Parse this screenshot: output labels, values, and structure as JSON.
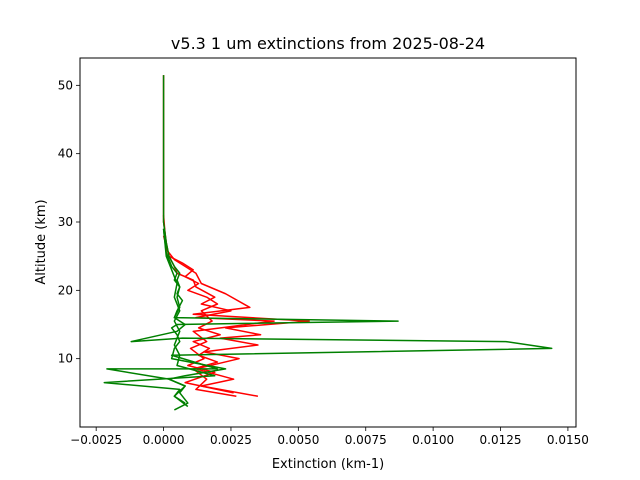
{
  "chart_data": {
    "type": "line",
    "title": "v5.3 1 um extinctions from 2025-08-24",
    "xlabel": "Extinction (km-1)",
    "ylabel": "Altitude (km)",
    "xlim": [
      -0.0031,
      0.0153
    ],
    "ylim": [
      0.0,
      54.0
    ],
    "xticks": [
      -0.0025,
      0.0,
      0.0025,
      0.005,
      0.0075,
      0.01,
      0.0125,
      0.015
    ],
    "xtick_labels": [
      "−0.0025",
      "0.0000",
      "0.0025",
      "0.0050",
      "0.0075",
      "0.0100",
      "0.0125",
      "0.0150"
    ],
    "yticks": [
      10,
      20,
      30,
      40,
      50
    ],
    "ytick_labels": [
      "10",
      "20",
      "30",
      "40",
      "50"
    ],
    "grid": false,
    "legend": "none",
    "series": [
      {
        "color": "#ff0000",
        "x": [
          0.0027,
          0.0012,
          0.0016,
          0.0011,
          0.002,
          0.0013,
          0.0017,
          0.0011,
          0.0021,
          0.0013,
          0.0018,
          0.0014,
          0.002,
          0.0016,
          0.0009,
          0.0013,
          0.0008,
          0.0011,
          0.0007,
          0.0002,
          0.0001,
          0.0,
          0.0,
          0.0,
          0.0
        ],
        "y": [
          4.5,
          5.5,
          7.0,
          8.5,
          9.5,
          10.5,
          11.5,
          12.5,
          13.5,
          14.5,
          15.5,
          17.0,
          18.0,
          19.0,
          20.0,
          21.0,
          22.0,
          23.0,
          24.0,
          25.0,
          27.0,
          30.0,
          35.0,
          45.0,
          51.5
        ]
      },
      {
        "color": "#ff0000",
        "x": [
          0.0035,
          0.0014,
          0.0026,
          0.0012,
          0.0028,
          0.0015,
          0.0035,
          0.0021,
          0.0036,
          0.0023,
          0.0054,
          0.0011,
          0.0032,
          0.0023,
          0.0014,
          0.0012,
          0.0008,
          0.0004,
          0.0001,
          0.0
        ],
        "y": [
          4.5,
          6.0,
          7.0,
          8.5,
          10.0,
          11.0,
          12.0,
          13.0,
          13.5,
          14.5,
          15.5,
          16.5,
          17.5,
          19.5,
          21.0,
          22.5,
          23.5,
          24.5,
          26.0,
          31.0
        ]
      },
      {
        "color": "#ff0000",
        "x": [
          0.0026,
          0.0008,
          0.0019,
          0.0009,
          0.0015,
          0.001,
          0.0016,
          0.0011,
          0.0041,
          0.0012,
          0.0025,
          0.0014,
          0.0019,
          0.0012,
          0.0011,
          0.0005,
          0.0004,
          0.0002,
          0.0
        ],
        "y": [
          5.0,
          6.5,
          8.0,
          9.0,
          10.0,
          11.5,
          12.5,
          14.0,
          15.5,
          16.0,
          17.0,
          18.0,
          19.0,
          20.5,
          21.5,
          22.5,
          23.5,
          25.0,
          28.0
        ]
      },
      {
        "color": "#008000",
        "x": [
          0.0004,
          0.0009,
          0.0006,
          0.0008,
          0.0002,
          0.0008,
          0.0023,
          0.0003,
          0.0004,
          0.0006,
          0.0005,
          0.0003,
          0.0005,
          0.0087,
          0.0004,
          0.0005,
          0.0007,
          0.0005,
          0.0006,
          0.0005,
          0.0006,
          0.0004,
          0.0002,
          0.0001,
          0.0,
          0.0,
          0.0,
          0.0
        ],
        "y": [
          2.5,
          3.5,
          5.0,
          6.0,
          7.0,
          7.5,
          8.5,
          10.0,
          11.5,
          12.5,
          13.5,
          14.5,
          15.0,
          15.5,
          16.0,
          17.0,
          18.5,
          19.5,
          20.5,
          21.5,
          22.5,
          23.5,
          25.0,
          27.0,
          30.0,
          35.0,
          45.0,
          51.5
        ]
      },
      {
        "color": "#008000",
        "x": [
          0.0009,
          0.0004,
          0.0008,
          0.0002,
          -0.0021,
          0.002,
          0.0003,
          0.0144,
          0.0127,
          0.0007,
          -0.0012,
          0.0005,
          0.0008,
          0.0004,
          0.0006,
          0.0005,
          0.0006,
          0.0004,
          0.0005,
          0.0003,
          0.0001,
          0.0
        ],
        "y": [
          3.0,
          4.5,
          6.0,
          7.0,
          8.5,
          8.5,
          10.5,
          11.5,
          12.5,
          13.0,
          12.5,
          14.0,
          15.0,
          16.0,
          17.5,
          19.0,
          20.5,
          21.5,
          22.5,
          23.5,
          25.5,
          29.0
        ]
      },
      {
        "color": "#008000",
        "x": [
          0.0008,
          0.0004,
          0.0006,
          -0.0022,
          0.0019,
          0.0005,
          0.0006,
          0.0004,
          0.0006,
          0.0004,
          0.0006,
          0.0004,
          0.0005,
          0.0003,
          0.0001,
          0.0
        ],
        "y": [
          3.5,
          4.5,
          5.5,
          6.5,
          7.5,
          9.0,
          10.5,
          12.0,
          14.0,
          15.5,
          17.0,
          19.0,
          21.0,
          23.0,
          25.0,
          29.0
        ]
      }
    ]
  }
}
